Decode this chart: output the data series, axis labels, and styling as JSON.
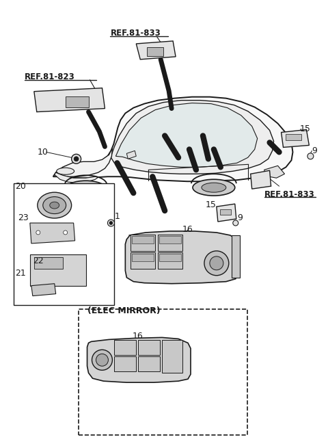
{
  "bg_color": "#ffffff",
  "lc": "#1a1a1a",
  "fig_w": 4.8,
  "fig_h": 6.55,
  "dpi": 100,
  "labels": {
    "ref81833_top": "REF.81-833",
    "ref81823": "REF.81-823",
    "ref81833_right": "REF.81-833",
    "elec_mirror": "(ELEC MIRROR)",
    "n10": "10",
    "n15a": "15",
    "n15b": "15",
    "n16a": "16",
    "n16b": "16",
    "n9a": "9",
    "n9b": "9",
    "n20": "20",
    "n21": "21",
    "n22": "22",
    "n23": "23",
    "n1": "1"
  }
}
